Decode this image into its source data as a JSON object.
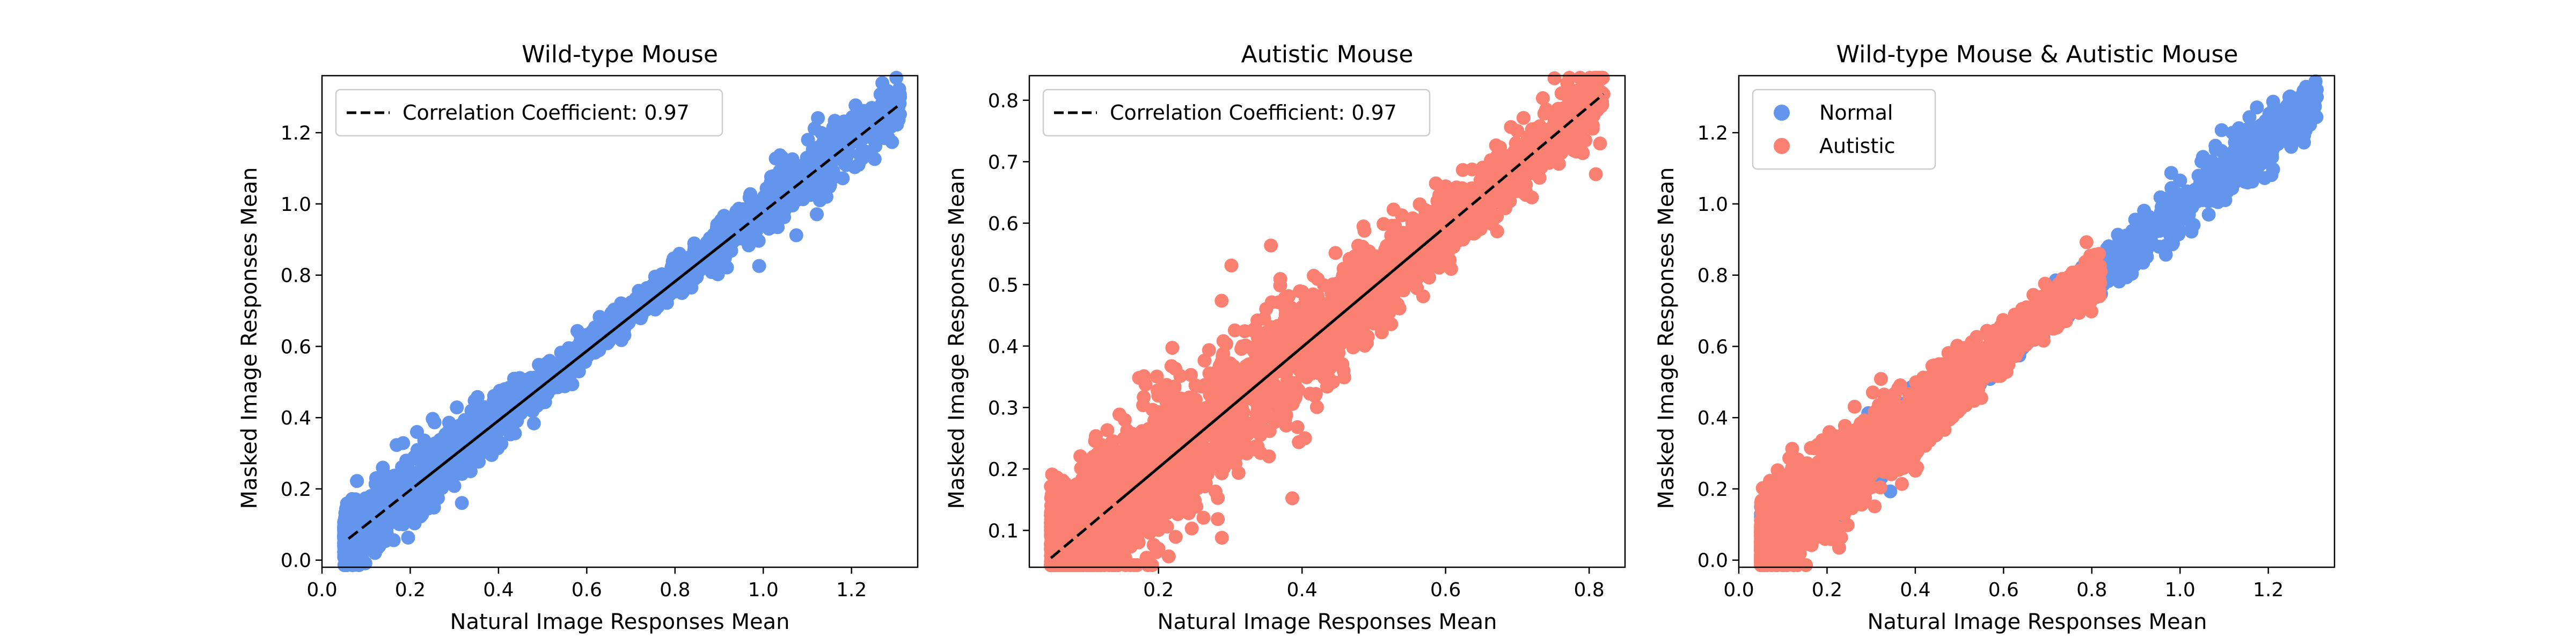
{
  "colors": {
    "normal": "#6495ed",
    "autistic": "#fa8072",
    "fit_line": "#000000"
  },
  "chart_data": [
    {
      "type": "scatter",
      "title": "Wild-type Mouse",
      "xlabel": "Natural Image Responses Mean",
      "ylabel": "Masked Image Responses Mean",
      "xlim": [
        0.0,
        1.35
      ],
      "ylim": [
        -0.02,
        1.36
      ],
      "xticks": [
        0.0,
        0.2,
        0.4,
        0.6,
        0.8,
        1.0,
        1.2
      ],
      "yticks": [
        0.0,
        0.2,
        0.4,
        0.6,
        0.8,
        1.0,
        1.2
      ],
      "tick_labels_x": [
        "0.0",
        "0.2",
        "0.4",
        "0.6",
        "0.8",
        "1.0",
        "1.2"
      ],
      "tick_labels_y": [
        "0.0",
        "0.2",
        "0.4",
        "0.6",
        "0.8",
        "1.0",
        "1.2"
      ],
      "legend": {
        "location": "upper-left",
        "entries": [
          {
            "label": "Correlation Coefficient: 0.97",
            "style": "dashed-line"
          }
        ]
      },
      "fit_line": {
        "x": [
          0.06,
          1.31
        ],
        "y": [
          0.06,
          1.28
        ]
      },
      "series": [
        {
          "color_key": "normal",
          "cloud": {
            "x_start": 0.05,
            "x_end": 1.31,
            "slope": 0.982,
            "intercept": 0.005,
            "spread": 0.035,
            "count": 1800
          },
          "points": [
            [
              1.31,
              1.3
            ],
            [
              1.2,
              1.22
            ],
            [
              1.18,
              1.19
            ],
            [
              1.11,
              1.13
            ],
            [
              1.08,
              1.06
            ],
            [
              1.02,
              0.97
            ],
            [
              0.99,
              1.0
            ],
            [
              0.95,
              0.93
            ],
            [
              0.9,
              0.85
            ],
            [
              0.85,
              0.83
            ],
            [
              0.81,
              0.86
            ],
            [
              0.06,
              0.15
            ],
            [
              0.07,
              0.03
            ],
            [
              0.12,
              0.02
            ]
          ]
        }
      ]
    },
    {
      "type": "scatter",
      "title": "Autistic Mouse",
      "xlabel": "Natural Image Responses Mean",
      "ylabel": "Masked Image Responses Mean",
      "xlim": [
        0.02,
        0.85
      ],
      "ylim": [
        0.04,
        0.84
      ],
      "xticks": [
        0.2,
        0.4,
        0.6,
        0.8
      ],
      "yticks": [
        0.1,
        0.2,
        0.3,
        0.4,
        0.5,
        0.6,
        0.7,
        0.8
      ],
      "tick_labels_x": [
        "0.2",
        "0.4",
        "0.6",
        "0.8"
      ],
      "tick_labels_y": [
        "0.1",
        "0.2",
        "0.3",
        "0.4",
        "0.5",
        "0.6",
        "0.7",
        "0.8"
      ],
      "legend": {
        "location": "upper-left",
        "entries": [
          {
            "label": "Correlation Coefficient: 0.97",
            "style": "dashed-line"
          }
        ]
      },
      "fit_line": {
        "x": [
          0.05,
          0.82
        ],
        "y": [
          0.055,
          0.81
        ]
      },
      "series": [
        {
          "color_key": "autistic",
          "cloud": {
            "x_start": 0.05,
            "x_end": 0.82,
            "slope": 0.985,
            "intercept": 0.005,
            "spread": 0.045,
            "count": 2600
          },
          "points": [
            [
              0.82,
              0.81
            ],
            [
              0.8,
              0.8
            ],
            [
              0.77,
              0.76
            ],
            [
              0.74,
              0.72
            ],
            [
              0.7,
              0.75
            ],
            [
              0.68,
              0.7
            ],
            [
              0.65,
              0.62
            ],
            [
              0.6,
              0.66
            ],
            [
              0.56,
              0.6
            ],
            [
              0.05,
              0.07
            ],
            [
              0.06,
              0.15
            ],
            [
              0.1,
              0.18
            ],
            [
              0.15,
              0.05
            ],
            [
              0.2,
              0.07
            ]
          ]
        }
      ]
    },
    {
      "type": "scatter",
      "title": "Wild-type Mouse & Autistic Mouse",
      "xlabel": "Natural Image Responses Mean",
      "ylabel": "Masked Image Responses Mean",
      "xlim": [
        0.0,
        1.35
      ],
      "ylim": [
        -0.02,
        1.36
      ],
      "xticks": [
        0.0,
        0.2,
        0.4,
        0.6,
        0.8,
        1.0,
        1.2
      ],
      "yticks": [
        0.0,
        0.2,
        0.4,
        0.6,
        0.8,
        1.0,
        1.2
      ],
      "tick_labels_x": [
        "0.0",
        "0.2",
        "0.4",
        "0.6",
        "0.8",
        "1.0",
        "1.2"
      ],
      "tick_labels_y": [
        "0.0",
        "0.2",
        "0.4",
        "0.6",
        "0.8",
        "1.0",
        "1.2"
      ],
      "legend": {
        "location": "upper-left",
        "entries": [
          {
            "label": "Normal",
            "style": "marker",
            "color_key": "normal"
          },
          {
            "label": "Autistic",
            "style": "marker",
            "color_key": "autistic"
          }
        ]
      },
      "series": [
        {
          "name": "Normal",
          "color_key": "normal",
          "cloud": {
            "x_start": 0.05,
            "x_end": 1.31,
            "slope": 0.982,
            "intercept": 0.005,
            "spread": 0.035,
            "count": 1800
          },
          "points": [
            [
              1.31,
              1.3
            ],
            [
              1.2,
              1.22
            ],
            [
              1.18,
              1.19
            ],
            [
              1.11,
              1.13
            ],
            [
              1.08,
              1.06
            ],
            [
              1.02,
              0.97
            ],
            [
              0.99,
              1.0
            ],
            [
              0.95,
              0.93
            ],
            [
              0.9,
              0.85
            ],
            [
              0.85,
              0.83
            ],
            [
              0.06,
              0.15
            ],
            [
              0.07,
              0.03
            ],
            [
              0.12,
              0.02
            ]
          ]
        },
        {
          "name": "Autistic",
          "color_key": "autistic",
          "cloud": {
            "x_start": 0.05,
            "x_end": 0.82,
            "slope": 0.985,
            "intercept": 0.005,
            "spread": 0.045,
            "count": 2600
          },
          "points": [
            [
              0.82,
              0.81
            ],
            [
              0.8,
              0.8
            ],
            [
              0.77,
              0.76
            ],
            [
              0.74,
              0.72
            ],
            [
              0.7,
              0.75
            ],
            [
              0.68,
              0.7
            ],
            [
              0.65,
              0.62
            ],
            [
              0.6,
              0.66
            ],
            [
              0.05,
              0.07
            ],
            [
              0.06,
              0.15
            ],
            [
              0.1,
              0.18
            ]
          ]
        }
      ]
    }
  ]
}
